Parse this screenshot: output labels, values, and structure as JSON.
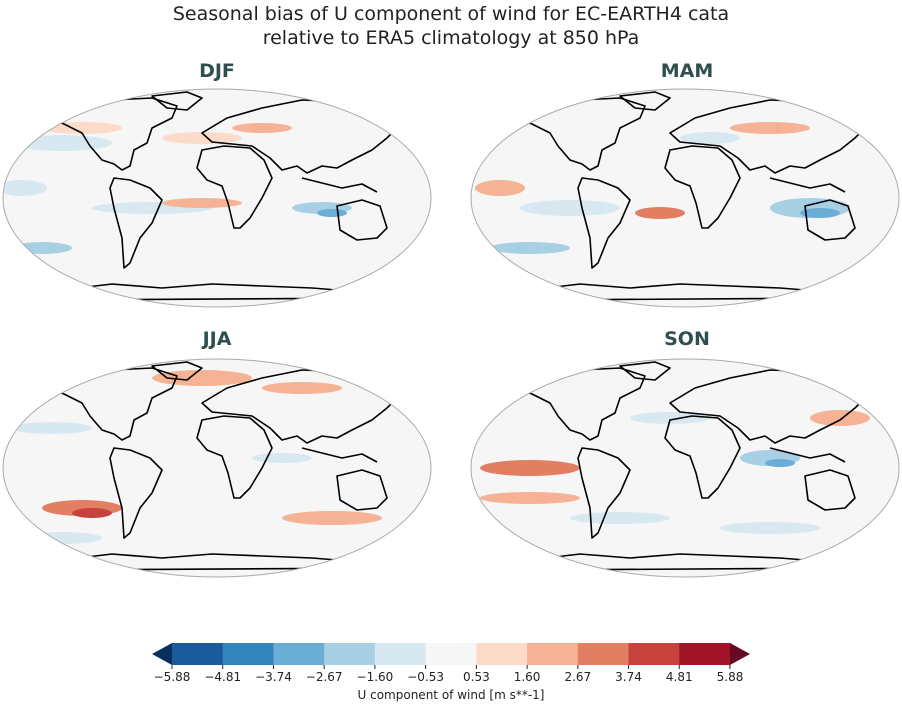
{
  "title_line1": "Seasonal bias of U component of wind for EC-EARTH4 cata",
  "title_line2": "relative to ERA5 climatology at 850 hPa",
  "panels": [
    "DJF",
    "MAM",
    "JJA",
    "SON"
  ],
  "colorbar": {
    "label": "U component of wind [m s**-1]",
    "ticks": [
      "−5.88",
      "−4.81",
      "−3.74",
      "−2.67",
      "−1.60",
      "−0.53",
      "0.53",
      "1.60",
      "2.67",
      "3.74",
      "4.81",
      "5.88"
    ],
    "colors": [
      "#1c5a9e",
      "#3383bd",
      "#6aaed5",
      "#a7d0e4",
      "#d8e8f1",
      "#f6f6f6",
      "#fcdbc8",
      "#f5b294",
      "#e27f63",
      "#c7423d",
      "#a21427"
    ],
    "under_color": "#08305f",
    "over_color": "#670824",
    "extend": "both"
  }
}
